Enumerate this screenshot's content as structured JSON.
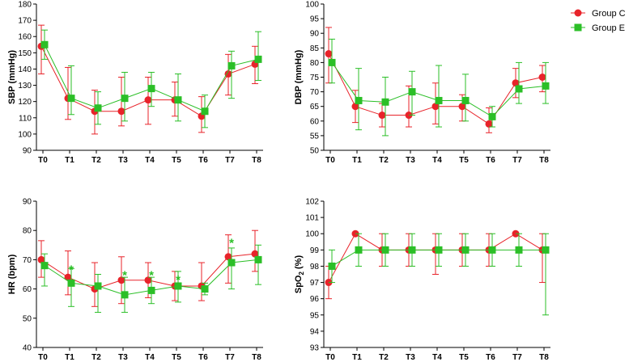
{
  "colors": {
    "group_c": "#e8232a",
    "group_e": "#2bbf27",
    "axis": "#000000"
  },
  "legend": [
    {
      "label": "Group C",
      "marker": "circle"
    },
    {
      "label": "Group E",
      "marker": "square"
    }
  ],
  "chart_data": [
    {
      "type": "line",
      "ylabel": "SBP (mmHg)",
      "ylim": [
        90,
        180
      ],
      "yticks": [
        90,
        100,
        110,
        120,
        130,
        140,
        150,
        160,
        170,
        180
      ],
      "categories": [
        "T0",
        "T1",
        "T2",
        "T3",
        "T4",
        "T5",
        "T6",
        "T7",
        "T8"
      ],
      "series": [
        {
          "name": "Group C",
          "values": [
            154,
            122,
            114,
            114,
            121,
            121,
            111,
            137,
            143
          ],
          "err_low": [
            137,
            109,
            100,
            105,
            106,
            111,
            101,
            124,
            131
          ],
          "err_high": [
            167,
            141,
            127,
            135,
            135,
            132,
            123,
            149,
            154
          ]
        },
        {
          "name": "Group E",
          "values": [
            155,
            122,
            116,
            122,
            128,
            121,
            114,
            142,
            146
          ],
          "err_low": [
            146,
            112,
            106,
            108,
            117,
            108,
            104,
            122,
            133
          ],
          "err_high": [
            164,
            142,
            126,
            138,
            138,
            137,
            124,
            151,
            163
          ]
        }
      ],
      "significance": []
    },
    {
      "type": "line",
      "ylabel": "DBP (mmHg)",
      "ylim": [
        50,
        100
      ],
      "yticks": [
        50,
        55,
        60,
        65,
        70,
        75,
        80,
        85,
        90,
        95,
        100
      ],
      "categories": [
        "T0",
        "T1",
        "T2",
        "T3",
        "T4",
        "T5",
        "T6",
        "T7",
        "T8"
      ],
      "series": [
        {
          "name": "Group C",
          "values": [
            83,
            65,
            62,
            62,
            65,
            65,
            59,
            73,
            75
          ],
          "err_low": [
            73,
            59.5,
            58,
            58,
            59,
            60,
            56,
            68,
            70
          ],
          "err_high": [
            92,
            70.5,
            66,
            72,
            73,
            69,
            64.5,
            78,
            79
          ]
        },
        {
          "name": "Group E",
          "values": [
            80,
            67,
            66.5,
            70,
            67,
            67,
            61.5,
            71,
            72
          ],
          "err_low": [
            73,
            57,
            55,
            62,
            58,
            60,
            58,
            66,
            66
          ],
          "err_high": [
            88,
            78,
            75,
            77,
            79,
            76,
            65,
            80,
            80
          ]
        }
      ],
      "significance": []
    },
    {
      "type": "line",
      "ylabel": "HR (bpm)",
      "ylim": [
        40,
        90
      ],
      "yticks": [
        40,
        50,
        60,
        70,
        80,
        90
      ],
      "categories": [
        "T0",
        "T1",
        "T2",
        "T3",
        "T4",
        "T5",
        "T6",
        "T7",
        "T8"
      ],
      "series": [
        {
          "name": "Group C",
          "values": [
            70,
            64,
            60,
            63,
            63,
            61,
            61,
            71,
            72
          ],
          "err_low": [
            64,
            58,
            54,
            55,
            57,
            56,
            56,
            62,
            66
          ],
          "err_high": [
            76.5,
            73,
            69,
            71,
            69,
            66,
            69,
            78.5,
            80
          ]
        },
        {
          "name": "Group E",
          "values": [
            68,
            62,
            61,
            58,
            59.5,
            61,
            60,
            69,
            70
          ],
          "err_low": [
            61,
            54,
            52,
            52,
            55,
            55.5,
            58,
            60,
            61.5
          ],
          "err_high": [
            72,
            67,
            65,
            64,
            64,
            66,
            62,
            74,
            75
          ]
        }
      ],
      "significance": [
        {
          "category": "T1",
          "label": "*",
          "value": 67
        },
        {
          "category": "T3",
          "label": "*",
          "value": 65
        },
        {
          "category": "T4",
          "label": "*",
          "value": 65
        },
        {
          "category": "T5",
          "label": "*",
          "value": 63.5
        },
        {
          "category": "T7",
          "label": "*",
          "value": 76
        }
      ]
    },
    {
      "type": "line",
      "ylabel_main": "SpO",
      "ylabel_sub": "2",
      "ylabel_unit": " (%)",
      "ylim": [
        93,
        102
      ],
      "yticks": [
        93,
        94,
        95,
        96,
        97,
        98,
        99,
        100,
        101,
        102
      ],
      "categories": [
        "T0",
        "T1",
        "T2",
        "T3",
        "T4",
        "T5",
        "T6",
        "T7",
        "T8"
      ],
      "series": [
        {
          "name": "Group C",
          "values": [
            97,
            100,
            99,
            99,
            99,
            99,
            99,
            100,
            99
          ],
          "err_low": [
            96,
            100,
            98,
            98,
            97.5,
            98,
            98,
            100,
            97
          ],
          "err_high": [
            98,
            100,
            100,
            100,
            100,
            100,
            100,
            100,
            100
          ]
        },
        {
          "name": "Group E",
          "values": [
            98,
            99,
            99,
            99,
            99,
            99,
            99,
            99,
            99
          ],
          "err_low": [
            97,
            98,
            98,
            98,
            98,
            98,
            98,
            98,
            95
          ],
          "err_high": [
            99,
            100,
            100,
            100,
            100,
            100,
            100,
            100,
            100
          ]
        }
      ],
      "significance": []
    }
  ]
}
